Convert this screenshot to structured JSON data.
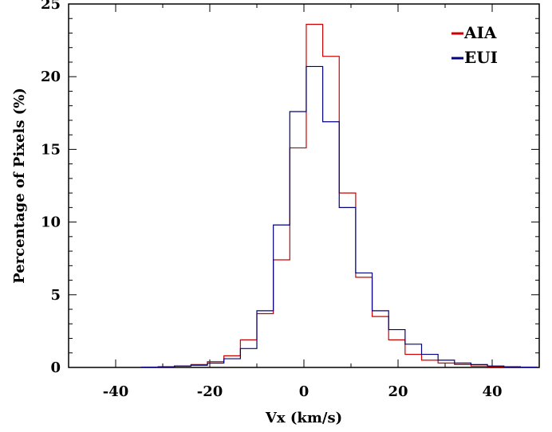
{
  "chart_data": {
    "type": "line",
    "subtype": "step-histogram",
    "xlabel": "Vx (km/s)",
    "ylabel": "Percentage of Pixels (%)",
    "xlim": [
      -50,
      50
    ],
    "ylim": [
      0,
      25
    ],
    "xticks": [
      -40,
      -20,
      0,
      20,
      40
    ],
    "yticks": [
      0,
      5,
      10,
      15,
      20,
      25
    ],
    "grid": false,
    "legend_position": "top-right",
    "bin_edges": [
      -34.5,
      -31.0,
      -27.5,
      -24.0,
      -20.5,
      -17.0,
      -13.5,
      -10.0,
      -6.5,
      -3.0,
      0.5,
      4.0,
      7.5,
      11.0,
      14.5,
      18.0,
      21.5,
      25.0,
      28.5,
      32.0,
      35.5,
      39.0,
      42.5,
      46.0,
      49.5
    ],
    "series": [
      {
        "name": "AIA",
        "color": "#cc0000",
        "values": [
          0.02,
          0.05,
          0.1,
          0.2,
          0.4,
          0.8,
          1.9,
          3.7,
          7.4,
          15.1,
          23.6,
          21.4,
          12.0,
          6.2,
          3.5,
          1.9,
          0.9,
          0.5,
          0.3,
          0.2,
          0.1,
          0.05,
          0.05,
          0.02
        ]
      },
      {
        "name": "EUI",
        "color": "#000080",
        "values": [
          0.02,
          0.05,
          0.1,
          0.15,
          0.3,
          0.6,
          1.3,
          3.9,
          9.8,
          17.6,
          20.7,
          16.9,
          11.0,
          6.5,
          3.9,
          2.6,
          1.6,
          0.9,
          0.5,
          0.3,
          0.2,
          0.1,
          0.05,
          0.02
        ]
      }
    ]
  }
}
